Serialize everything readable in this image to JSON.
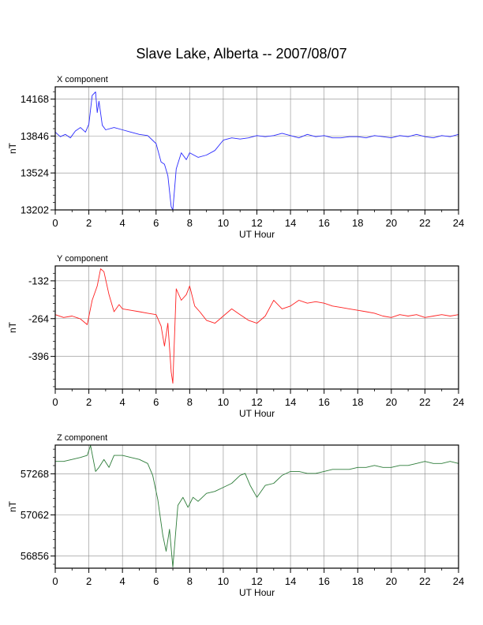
{
  "page": {
    "title": "Slave Lake, Alberta -- 2007/08/07"
  },
  "chart_data": [
    {
      "type": "line",
      "title": "X component",
      "xlabel": "UT Hour",
      "ylabel": "nT",
      "xlim": [
        0,
        24
      ],
      "ylim": [
        13202,
        14275
      ],
      "x_ticks": [
        0,
        2,
        4,
        6,
        8,
        10,
        12,
        14,
        16,
        18,
        20,
        22,
        24
      ],
      "y_ticks": [
        13202,
        13524,
        13846,
        14168
      ],
      "grid": true,
      "series": [
        {
          "color": "#2b2bff",
          "x": [
            0,
            0.3,
            0.6,
            0.9,
            1.2,
            1.5,
            1.8,
            2.0,
            2.2,
            2.4,
            2.5,
            2.6,
            2.8,
            3.0,
            3.5,
            4.0,
            4.5,
            5.0,
            5.5,
            6.0,
            6.3,
            6.5,
            6.7,
            6.9,
            7.0,
            7.2,
            7.5,
            7.8,
            8.0,
            8.5,
            9.0,
            9.5,
            10.0,
            10.5,
            11.0,
            11.5,
            12.0,
            12.5,
            13.0,
            13.5,
            14.0,
            14.5,
            15.0,
            15.5,
            16.0,
            16.5,
            17.0,
            17.5,
            18.0,
            18.5,
            19.0,
            19.5,
            20.0,
            20.5,
            21.0,
            21.5,
            22.0,
            22.5,
            23.0,
            23.5,
            24.0
          ],
          "y": [
            13880,
            13840,
            13860,
            13830,
            13890,
            13920,
            13880,
            13950,
            14200,
            14230,
            14050,
            14150,
            13940,
            13900,
            13920,
            13900,
            13880,
            13860,
            13850,
            13780,
            13620,
            13600,
            13500,
            13230,
            13202,
            13560,
            13700,
            13640,
            13700,
            13660,
            13680,
            13720,
            13810,
            13830,
            13820,
            13830,
            13850,
            13840,
            13850,
            13870,
            13850,
            13830,
            13860,
            13840,
            13850,
            13830,
            13830,
            13840,
            13840,
            13830,
            13850,
            13840,
            13830,
            13850,
            13840,
            13860,
            13840,
            13830,
            13850,
            13840,
            13860
          ]
        }
      ]
    },
    {
      "type": "line",
      "title": "Y component",
      "xlabel": "UT Hour",
      "ylabel": "nT",
      "xlim": [
        0,
        24
      ],
      "ylim": [
        -510,
        -80
      ],
      "x_ticks": [
        0,
        2,
        4,
        6,
        8,
        10,
        12,
        14,
        16,
        18,
        20,
        22,
        24
      ],
      "y_ticks": [
        -132,
        -264,
        -396
      ],
      "grid": true,
      "series": [
        {
          "color": "#ff2020",
          "x": [
            0,
            0.5,
            1.0,
            1.5,
            1.9,
            2.2,
            2.5,
            2.7,
            2.9,
            3.2,
            3.5,
            3.8,
            4.0,
            4.5,
            5.0,
            5.5,
            6.0,
            6.3,
            6.5,
            6.7,
            6.9,
            7.0,
            7.2,
            7.5,
            7.8,
            8.0,
            8.3,
            8.6,
            9.0,
            9.5,
            10.0,
            10.5,
            11.0,
            11.5,
            12.0,
            12.5,
            13.0,
            13.5,
            14.0,
            14.5,
            15.0,
            15.5,
            16.0,
            16.5,
            17.0,
            17.5,
            18.0,
            18.5,
            19.0,
            19.5,
            20.0,
            20.5,
            21.0,
            21.5,
            22.0,
            22.5,
            23.0,
            23.5,
            24.0
          ],
          "y": [
            -250,
            -260,
            -255,
            -265,
            -285,
            -200,
            -150,
            -90,
            -100,
            -180,
            -240,
            -215,
            -230,
            -235,
            -240,
            -245,
            -250,
            -290,
            -360,
            -280,
            -450,
            -490,
            -160,
            -200,
            -180,
            -150,
            -220,
            -240,
            -270,
            -280,
            -255,
            -230,
            -250,
            -270,
            -280,
            -255,
            -200,
            -230,
            -220,
            -200,
            -210,
            -205,
            -210,
            -220,
            -225,
            -230,
            -235,
            -240,
            -245,
            -255,
            -260,
            -250,
            -255,
            -250,
            -260,
            -255,
            -250,
            -255,
            -250
          ]
        }
      ]
    },
    {
      "type": "line",
      "title": "Z component",
      "xlabel": "UT Hour",
      "ylabel": "nT",
      "xlim": [
        0,
        24
      ],
      "ylim": [
        56795,
        57412
      ],
      "x_ticks": [
        0,
        2,
        4,
        6,
        8,
        10,
        12,
        14,
        16,
        18,
        20,
        22,
        24
      ],
      "y_ticks": [
        56856,
        57062,
        57268
      ],
      "grid": true,
      "series": [
        {
          "color": "#2e7d3a",
          "x": [
            0,
            0.5,
            1.0,
            1.5,
            1.9,
            2.1,
            2.4,
            2.6,
            2.9,
            3.2,
            3.5,
            4.0,
            4.5,
            5.0,
            5.5,
            5.8,
            6.1,
            6.4,
            6.6,
            6.8,
            7.0,
            7.3,
            7.6,
            7.9,
            8.2,
            8.5,
            9.0,
            9.5,
            10.0,
            10.5,
            11.0,
            11.3,
            11.6,
            12.0,
            12.5,
            13.0,
            13.5,
            14.0,
            14.5,
            15.0,
            15.5,
            16.0,
            16.5,
            17.0,
            17.5,
            18.0,
            18.5,
            19.0,
            19.5,
            20.0,
            20.5,
            21.0,
            21.5,
            22.0,
            22.5,
            23.0,
            23.5,
            24.0
          ],
          "y": [
            57330,
            57330,
            57340,
            57350,
            57360,
            57410,
            57280,
            57300,
            57340,
            57300,
            57360,
            57360,
            57350,
            57340,
            57320,
            57260,
            57140,
            56960,
            56880,
            56990,
            56800,
            57110,
            57150,
            57100,
            57150,
            57130,
            57170,
            57180,
            57200,
            57220,
            57260,
            57270,
            57210,
            57150,
            57210,
            57220,
            57260,
            57280,
            57280,
            57270,
            57270,
            57280,
            57290,
            57290,
            57290,
            57300,
            57300,
            57310,
            57300,
            57300,
            57310,
            57310,
            57320,
            57330,
            57320,
            57320,
            57330,
            57320
          ]
        }
      ]
    }
  ]
}
